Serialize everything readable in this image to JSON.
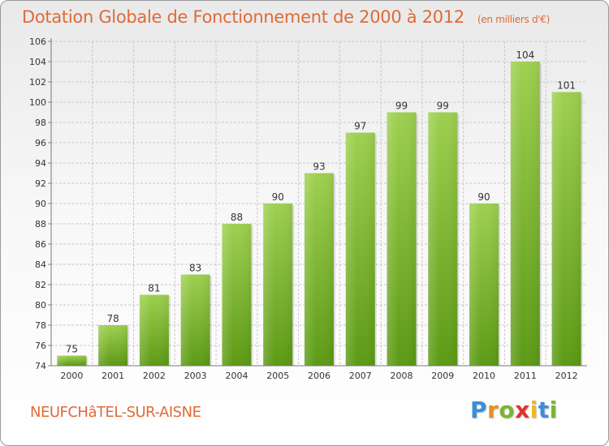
{
  "title": "Dotation Globale de Fonctionnement de 2000 à 2012",
  "subtitle": "(en milliers d'€)",
  "commune": "NEUFCHâTEL-SUR-AISNE",
  "logo": {
    "letters": [
      "P",
      "r",
      "o",
      "x",
      "i",
      "t",
      "i"
    ],
    "colors": [
      "#3a8fd8",
      "#e8901f",
      "#7ab530",
      "#e0322d",
      "#f0b81a",
      "#3a8fd8",
      "#7ab530"
    ]
  },
  "colors": {
    "bar_light": "#9ed050",
    "bar_dark": "#5c9a14",
    "title": "#e06a36"
  },
  "chart_data": {
    "type": "bar",
    "categories": [
      "2000",
      "2001",
      "2002",
      "2003",
      "2004",
      "2005",
      "2006",
      "2007",
      "2008",
      "2009",
      "2010",
      "2011",
      "2012"
    ],
    "values": [
      75,
      78,
      81,
      83,
      88,
      90,
      93,
      97,
      99,
      99,
      90,
      104,
      101
    ],
    "ylim": [
      74,
      106
    ],
    "yticks": [
      74,
      76,
      78,
      80,
      82,
      84,
      86,
      88,
      90,
      92,
      94,
      96,
      98,
      100,
      102,
      104,
      106
    ],
    "grid": true
  }
}
